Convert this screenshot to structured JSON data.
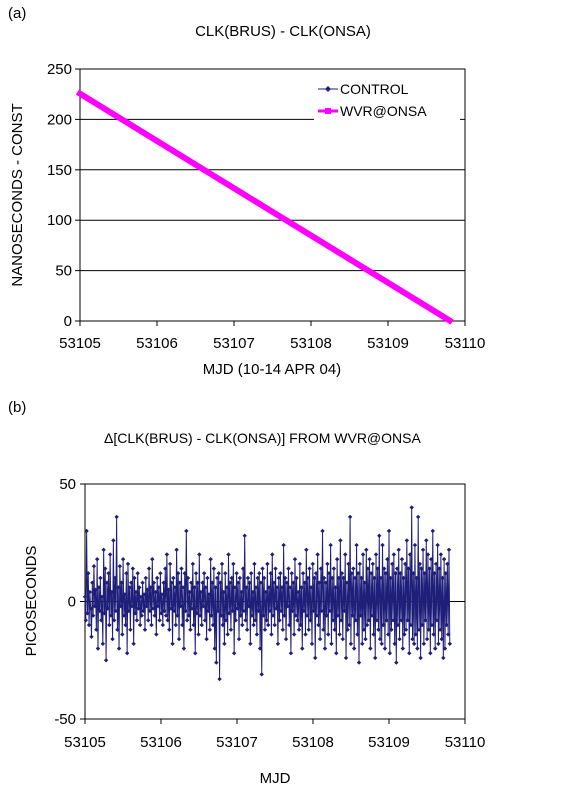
{
  "colors": {
    "control": "#1f1f7a",
    "wvr": "#ff00ff",
    "grid": "#000000"
  },
  "chart_data": [
    {
      "type": "line",
      "panel_label": "(a)",
      "title": "CLK(BRUS) - CLK(ONSA)",
      "xlabel": "MJD (10-14 APR 04)",
      "ylabel": "NANOSECONDS - CONST",
      "xlim": [
        53105,
        53110
      ],
      "ylim": [
        0,
        250
      ],
      "xticks": [
        "53105",
        "53106",
        "53107",
        "53108",
        "53109",
        "53110"
      ],
      "yticks": [
        "0",
        "50",
        "100",
        "150",
        "200",
        "250"
      ],
      "grid": "horizontal",
      "legend_position": "top-right",
      "series": [
        {
          "name": "CONTROL",
          "x": [
            53105.0,
            53109.8
          ],
          "y": [
            225.5,
            0.5
          ]
        },
        {
          "name": "WVR@ONSA",
          "x": [
            53105.0,
            53109.8
          ],
          "y": [
            225.5,
            0.5
          ]
        }
      ]
    },
    {
      "type": "line",
      "panel_label": "(b)",
      "title_symbol": "Δ",
      "title": "[CLK(BRUS) - CLK(ONSA)] FROM WVR@ONSA",
      "xlabel": "MJD",
      "ylabel": "PICOSECONDS",
      "xlim": [
        53105,
        53110
      ],
      "ylim": [
        -50,
        50
      ],
      "xticks": [
        "53105",
        "53106",
        "53107",
        "53108",
        "53109",
        "53110"
      ],
      "yticks": [
        "-50",
        "0",
        "50"
      ],
      "grid": "zero-line",
      "x_start": 53105.0,
      "x_end": 53109.8,
      "series": [
        {
          "y": [
            2,
            -8,
            30,
            -5,
            12,
            -10,
            4,
            -3,
            -15,
            8,
            -6,
            15,
            -2,
            5,
            -12,
            18,
            -20,
            6,
            -4,
            10,
            -8,
            2,
            -18,
            22,
            -5,
            14,
            -25,
            8,
            -3,
            12,
            -10,
            20,
            -6,
            4,
            -16,
            26,
            -8,
            10,
            -4,
            36,
            -12,
            6,
            -20,
            15,
            -2,
            8,
            -14,
            18,
            -6,
            3,
            -10,
            12,
            -22,
            16,
            -4,
            6,
            -12,
            8,
            -2,
            14,
            -18,
            10,
            -5,
            4,
            -8,
            12,
            -3,
            6,
            -10,
            2,
            -6,
            8,
            -4,
            3,
            -12,
            10,
            -2,
            5,
            -8,
            14,
            -4,
            6,
            -10,
            18,
            -3,
            8,
            -6,
            4,
            -14,
            10,
            -2,
            6,
            -8,
            12,
            -5,
            3,
            -10,
            8,
            -4,
            14,
            -6,
            20,
            -8,
            5,
            -12,
            16,
            -3,
            8,
            -18,
            10,
            -4,
            6,
            -10,
            22,
            -6,
            12,
            -16,
            8,
            -2,
            14,
            -10,
            6,
            -20,
            12,
            -4,
            30,
            -8,
            10,
            -6,
            4,
            -12,
            8,
            -3,
            16,
            -10,
            6,
            -22,
            12,
            -5,
            8,
            -14,
            20,
            -6,
            4,
            -10,
            8,
            -2,
            12,
            -8,
            6,
            -16,
            10,
            -4,
            3,
            -12,
            18,
            -6,
            8,
            -10,
            14,
            -20,
            6,
            -26,
            10,
            -4,
            12,
            -33,
            8,
            -6,
            16,
            -10,
            4,
            -18,
            12,
            -8,
            6,
            -14,
            20,
            -5,
            8,
            -12,
            10,
            -4,
            16,
            -22,
            6,
            -8,
            12,
            -3,
            8,
            -16,
            10,
            -6,
            4,
            -10,
            14,
            -4,
            28,
            -8,
            6,
            -12,
            10,
            -2,
            8,
            -18,
            12,
            -6,
            4,
            -10,
            16,
            -8,
            6,
            -14,
            10,
            -4,
            12,
            -20,
            8,
            -31,
            14,
            -6,
            10,
            -12,
            4,
            -8,
            16,
            -10,
            6,
            -4,
            12,
            -14,
            20,
            -6,
            8,
            -10,
            14,
            -3,
            6,
            -18,
            10,
            -8,
            12,
            -4,
            6,
            -12,
            24,
            -6,
            10,
            -16,
            8,
            -2,
            14,
            -10,
            6,
            -22,
            12,
            -4,
            8,
            -14,
            18,
            -6,
            10,
            -8,
            4,
            -12,
            16,
            -10,
            6,
            -20,
            12,
            -4,
            8,
            -14,
            22,
            -6,
            10,
            -12,
            14,
            -8,
            6,
            -18,
            16,
            -4,
            10,
            -24,
            12,
            -6,
            20,
            -10,
            8,
            -16,
            14,
            -4,
            30,
            -12,
            10,
            -20,
            8,
            -6,
            16,
            -14,
            12,
            -4,
            24,
            -18,
            10,
            -8,
            14,
            -12,
            6,
            -22,
            18,
            -6,
            10,
            -14,
            26,
            -8,
            12,
            -16,
            10,
            -4,
            20,
            -24,
            8,
            -12,
            16,
            -10,
            36,
            -18,
            12,
            -6,
            14,
            -20,
            10,
            -8,
            24,
            -14,
            12,
            -26,
            16,
            -6,
            10,
            -18,
            20,
            -12,
            8,
            -16,
            22,
            -10,
            14,
            -8,
            18,
            -20,
            12,
            -6,
            16,
            -14,
            10,
            -24,
            20,
            -8,
            14,
            -12,
            28,
            -16,
            10,
            -18,
            24,
            -10,
            14,
            -20,
            12,
            -8,
            18,
            -14,
            30,
            -22,
            10,
            -12,
            16,
            -8,
            20,
            -18,
            12,
            -26,
            14,
            -10,
            22,
            -16,
            12,
            -8,
            18,
            -20,
            10,
            -14,
            16,
            -12,
            26,
            -8,
            14,
            -22,
            20,
            -10,
            40,
            -16,
            12,
            -18,
            24,
            -14,
            10,
            -20,
            36,
            -12,
            16,
            -24,
            14,
            -10,
            22,
            -18,
            12,
            -8,
            26,
            -16,
            20,
            -12,
            14,
            -22,
            18,
            -10,
            30,
            -14,
            12,
            -20,
            16,
            -8,
            24,
            -18,
            14,
            -12,
            20,
            -16,
            10,
            -24,
            18,
            -20,
            12,
            -10,
            16,
            -14,
            22,
            -18
          ]
        }
      ]
    }
  ]
}
